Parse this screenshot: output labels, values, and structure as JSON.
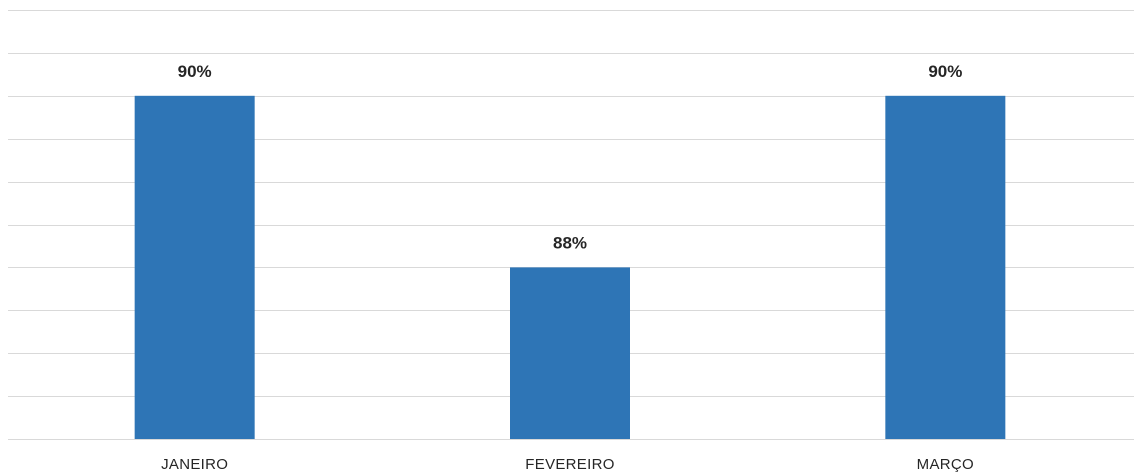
{
  "chart_data": {
    "type": "bar",
    "categories": [
      "JANEIRO",
      "FEVEREIRO",
      "MARÇO"
    ],
    "values": [
      90,
      88,
      90
    ],
    "data_labels": [
      "90%",
      "88%",
      "90%"
    ],
    "title": "",
    "xlabel": "",
    "ylabel": "",
    "ylim": [
      86,
      91
    ],
    "y_gridline_step": 0.5,
    "grid": true,
    "legend": "none",
    "bar_color": "#2E75B6",
    "grid_color": "#D9D9D9"
  }
}
